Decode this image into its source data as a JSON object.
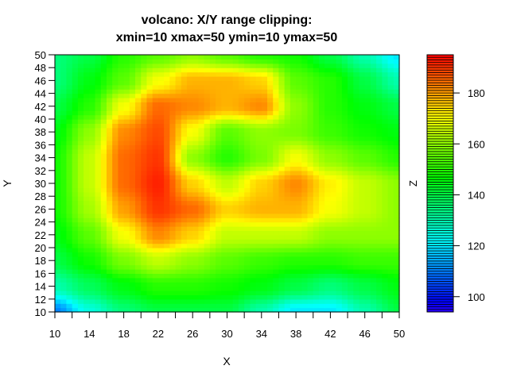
{
  "chart_data": {
    "type": "heatmap",
    "title_line1": "volcano: X/Y range clipping:",
    "title_line2": "xmin=10 xmax=50 ymin=10 ymax=50",
    "xlabel": "X",
    "ylabel": "Y",
    "zlabel": "Z",
    "xlim": [
      10,
      50
    ],
    "ylim": [
      10,
      50
    ],
    "zlim": [
      94,
      195
    ],
    "x": [
      10,
      14,
      18,
      22,
      26,
      30,
      34,
      38,
      42,
      46,
      50
    ],
    "y": [
      50,
      46,
      42,
      38,
      34,
      30,
      26,
      22,
      18,
      14,
      10
    ],
    "z": [
      [
        135,
        140,
        150,
        155,
        160,
        155,
        150,
        148,
        140,
        130,
        120
      ],
      [
        135,
        145,
        155,
        170,
        178,
        178,
        175,
        155,
        150,
        140,
        130
      ],
      [
        140,
        150,
        170,
        185,
        182,
        178,
        182,
        160,
        150,
        145,
        140
      ],
      [
        145,
        160,
        182,
        188,
        170,
        155,
        160,
        158,
        152,
        148,
        145
      ],
      [
        148,
        165,
        185,
        190,
        160,
        150,
        158,
        170,
        160,
        155,
        150
      ],
      [
        148,
        165,
        185,
        192,
        175,
        165,
        175,
        182,
        172,
        165,
        160
      ],
      [
        148,
        162,
        180,
        190,
        185,
        175,
        178,
        178,
        170,
        165,
        160
      ],
      [
        145,
        155,
        170,
        182,
        175,
        165,
        165,
        165,
        160,
        160,
        160
      ],
      [
        140,
        148,
        158,
        165,
        160,
        155,
        152,
        150,
        150,
        152,
        152
      ],
      [
        130,
        138,
        145,
        150,
        150,
        148,
        145,
        140,
        135,
        140,
        145
      ],
      [
        110,
        125,
        135,
        140,
        140,
        140,
        130,
        120,
        120,
        130,
        140
      ]
    ],
    "xticks": [
      10,
      12,
      14,
      16,
      18,
      20,
      22,
      24,
      26,
      28,
      30,
      32,
      34,
      36,
      38,
      40,
      42,
      44,
      46,
      48,
      50
    ],
    "xticklabels": [
      "10",
      "14",
      "18",
      "22",
      "26",
      "30",
      "34",
      "38",
      "42",
      "46",
      "50"
    ],
    "yticklabels": [
      "10",
      "12",
      "14",
      "16",
      "18",
      "20",
      "22",
      "24",
      "26",
      "28",
      "30",
      "32",
      "34",
      "36",
      "38",
      "40",
      "42",
      "44",
      "46",
      "48",
      "50"
    ],
    "colorbar_ticklabels": [
      "100",
      "120",
      "140",
      "160",
      "180"
    ],
    "legend": "right colorbar"
  }
}
